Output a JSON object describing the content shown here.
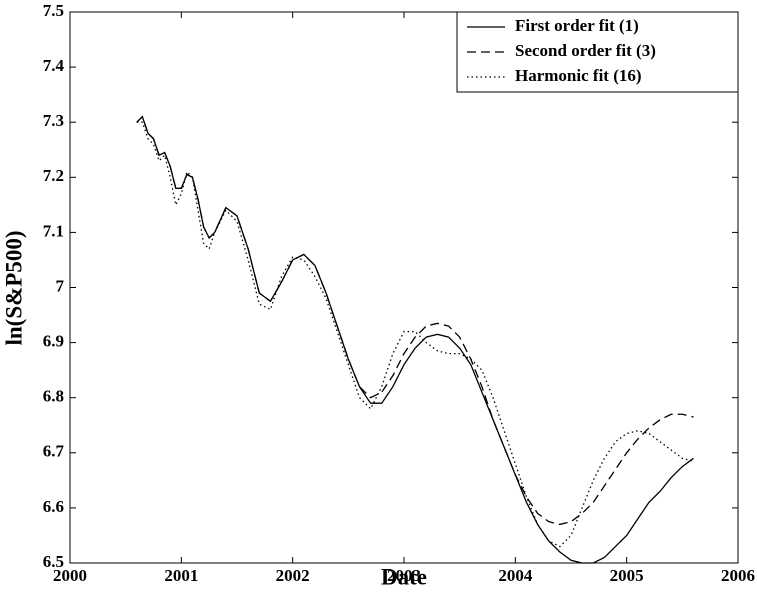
{
  "chart_data": {
    "type": "line",
    "xlabel": "Date",
    "ylabel": "ln(S&P500)",
    "x": [
      2000.6,
      2000.65,
      2000.7,
      2000.75,
      2000.8,
      2000.85,
      2000.9,
      2000.95,
      2001.0,
      2001.05,
      2001.1,
      2001.15,
      2001.2,
      2001.25,
      2001.3,
      2001.4,
      2001.5,
      2001.6,
      2001.7,
      2001.8,
      2001.9,
      2002.0,
      2002.1,
      2002.2,
      2002.3,
      2002.4,
      2002.5,
      2002.6,
      2002.7,
      2002.8,
      2002.9,
      2003.0,
      2003.1,
      2003.2,
      2003.3,
      2003.4,
      2003.5,
      2003.6,
      2003.7,
      2003.8,
      2003.9,
      2004.0,
      2004.1,
      2004.2,
      2004.3,
      2004.4,
      2004.5,
      2004.6,
      2004.7,
      2004.8,
      2004.9,
      2005.0,
      2005.1,
      2005.2,
      2005.3,
      2005.4,
      2005.5,
      2005.6
    ],
    "series": [
      {
        "name": "First order fit (1)",
        "color": "#000000",
        "dash": "solid",
        "values": [
          7.3,
          7.31,
          7.28,
          7.27,
          7.24,
          7.245,
          7.22,
          7.18,
          7.18,
          7.205,
          7.2,
          7.16,
          7.11,
          7.09,
          7.1,
          7.145,
          7.13,
          7.07,
          6.99,
          6.975,
          7.01,
          7.05,
          7.06,
          7.04,
          6.99,
          6.93,
          6.87,
          6.82,
          6.79,
          6.79,
          6.82,
          6.86,
          6.89,
          6.91,
          6.915,
          6.91,
          6.89,
          6.86,
          6.81,
          6.76,
          6.71,
          6.66,
          6.61,
          6.57,
          6.54,
          6.52,
          6.505,
          6.5,
          6.5,
          6.51,
          6.53,
          6.55,
          6.58,
          6.61,
          6.63,
          6.655,
          6.675,
          6.69
        ]
      },
      {
        "name": "Second order fit (3)",
        "color": "#000000",
        "dash": "dashed",
        "values": [
          7.3,
          7.31,
          7.28,
          7.27,
          7.24,
          7.245,
          7.22,
          7.18,
          7.18,
          7.205,
          7.2,
          7.16,
          7.11,
          7.09,
          7.1,
          7.145,
          7.13,
          7.07,
          6.99,
          6.975,
          7.01,
          7.05,
          7.06,
          7.04,
          6.99,
          6.93,
          6.87,
          6.82,
          6.8,
          6.81,
          6.84,
          6.88,
          6.91,
          6.93,
          6.935,
          6.93,
          6.91,
          6.87,
          6.82,
          6.76,
          6.71,
          6.66,
          6.62,
          6.59,
          6.575,
          6.57,
          6.575,
          6.59,
          6.61,
          6.64,
          6.67,
          6.7,
          6.725,
          6.745,
          6.76,
          6.77,
          6.77,
          6.765
        ]
      },
      {
        "name": "Harmonic fit (16)",
        "color": "#000000",
        "dash": "dotted",
        "values": [
          7.3,
          7.3,
          7.27,
          7.26,
          7.23,
          7.24,
          7.2,
          7.15,
          7.17,
          7.21,
          7.2,
          7.14,
          7.08,
          7.07,
          7.1,
          7.14,
          7.12,
          7.05,
          6.97,
          6.96,
          7.02,
          7.055,
          7.05,
          7.02,
          6.98,
          6.92,
          6.86,
          6.8,
          6.78,
          6.82,
          6.88,
          6.92,
          6.92,
          6.9,
          6.885,
          6.88,
          6.88,
          6.87,
          6.85,
          6.8,
          6.74,
          6.68,
          6.62,
          6.57,
          6.54,
          6.53,
          6.55,
          6.6,
          6.65,
          6.69,
          6.72,
          6.735,
          6.74,
          6.735,
          6.72,
          6.705,
          6.69,
          6.685
        ]
      }
    ],
    "xlim": [
      2000,
      2006
    ],
    "xticks": [
      2000,
      2001,
      2002,
      2003,
      2004,
      2005,
      2006
    ],
    "ylim": [
      6.5,
      7.5
    ],
    "yticks": [
      6.5,
      6.6,
      6.7,
      6.8,
      6.9,
      7,
      7.1,
      7.2,
      7.3,
      7.4,
      7.5
    ],
    "grid": false,
    "legend": "upper right"
  }
}
